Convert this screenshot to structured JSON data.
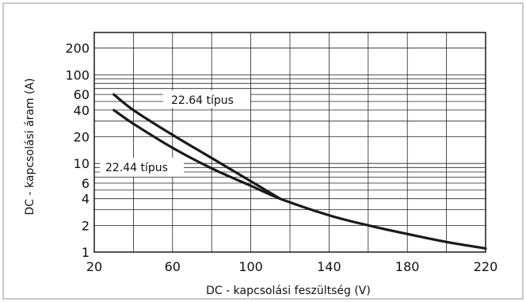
{
  "chart_data": {
    "type": "line",
    "xlabel": "DC -  kapcsolási feszültség (V)",
    "ylabel": "DC -  kapcsolási áram (A)",
    "xlim": [
      20,
      220
    ],
    "ylim": [
      1,
      300
    ],
    "yscale": "log",
    "grid": true,
    "x_ticks": [
      20,
      60,
      100,
      140,
      180,
      220
    ],
    "y_ticks": [
      1,
      2,
      4,
      6,
      10,
      20,
      40,
      60,
      100,
      200
    ],
    "series": [
      {
        "name": "22.64 típus",
        "x": [
          30,
          40,
          60,
          80,
          100,
          115
        ],
        "y": [
          60,
          40,
          21,
          11.5,
          6.3,
          4
        ]
      },
      {
        "name": "22.44 típus",
        "x": [
          30,
          40,
          60,
          80,
          100,
          115,
          140,
          160,
          180,
          200,
          220
        ],
        "y": [
          40,
          28,
          15,
          8.8,
          5.6,
          4,
          2.6,
          2,
          1.6,
          1.3,
          1.1
        ]
      }
    ],
    "annotations": [
      {
        "text": "22.64 típus",
        "series": 0
      },
      {
        "text": "22.44 típus",
        "series": 1
      }
    ]
  },
  "colors": {
    "line": "#1a1a1a",
    "grid": "#222222",
    "frame": "#c8c8c8"
  }
}
